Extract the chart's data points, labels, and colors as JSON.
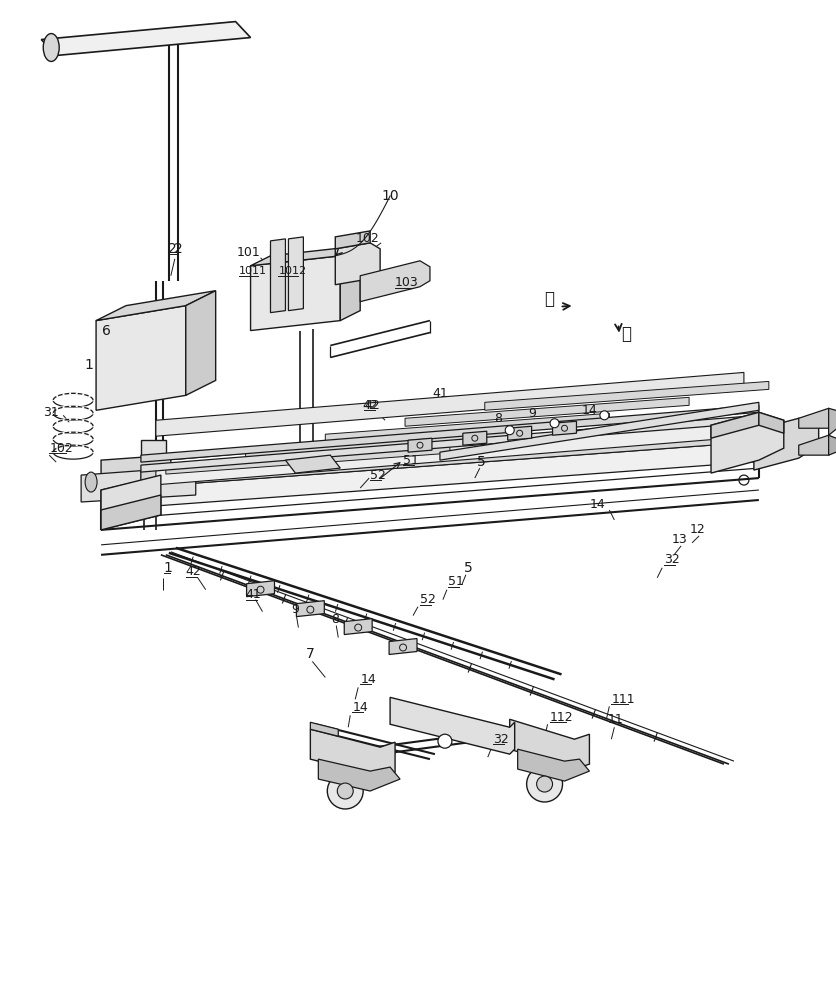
{
  "bg_color": "#ffffff",
  "lc": "#1a1a1a",
  "lw": 1.0,
  "lw2": 1.5,
  "fs": 9,
  "fs2": 10
}
